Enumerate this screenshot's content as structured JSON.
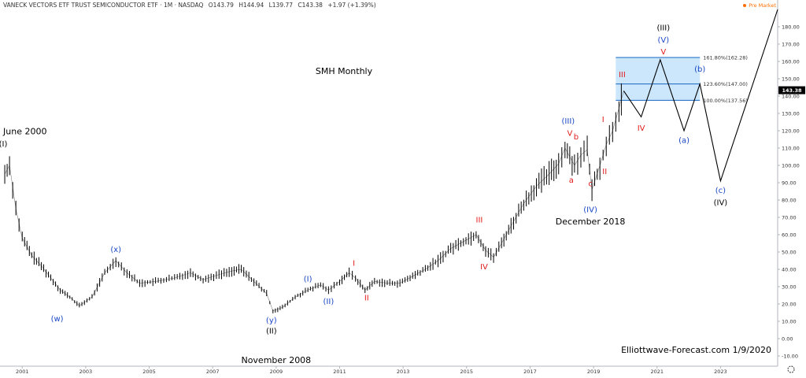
{
  "header": {
    "symbol": "VANECK VECTORS ETF TRUST SEMICONDUCTOR ETF · 1M · NASDAQ",
    "open": "O143.79",
    "high": "H144.94",
    "low": "L139.77",
    "close": "C143.38",
    "change": "+1.97 (+1.39%)",
    "premarket_label": "Pre Market",
    "premarket_color": "#ff6d00"
  },
  "chart_data": {
    "type": "line",
    "title": "SMH Monthly",
    "xlim": [
      2000.3,
      2024.8
    ],
    "ylim": [
      -10,
      190
    ],
    "y_ticks": [
      "-10.00",
      "0.00",
      "10.00",
      "20.00",
      "30.00",
      "40.00",
      "50.00",
      "60.00",
      "70.00",
      "80.00",
      "90.00",
      "100.00",
      "110.00",
      "120.00",
      "130.00",
      "140.00",
      "150.00",
      "160.00",
      "170.00",
      "180.00"
    ],
    "x_ticks": [
      "2001",
      "2003",
      "2005",
      "2007",
      "2009",
      "2011",
      "2013",
      "2015",
      "2017",
      "2019",
      "2021",
      "2023"
    ],
    "current_price": "143.38",
    "price_series": {
      "name": "SMH",
      "x": [
        2000.45,
        2000.6,
        2000.8,
        2001.0,
        2001.3,
        2001.6,
        2001.9,
        2002.2,
        2002.5,
        2002.8,
        2003.2,
        2003.6,
        2003.95,
        2004.3,
        2004.7,
        2005.2,
        2005.8,
        2006.3,
        2006.7,
        2007.2,
        2007.6,
        2007.9,
        2008.3,
        2008.7,
        2008.9,
        2009.2,
        2009.6,
        2010.0,
        2010.4,
        2010.65,
        2011.0,
        2011.3,
        2011.5,
        2011.8,
        2012.1,
        2012.5,
        2012.9,
        2013.3,
        2013.7,
        2014.1,
        2014.5,
        2014.9,
        2015.3,
        2015.6,
        2015.85,
        2016.1,
        2016.4,
        2016.8,
        2017.2,
        2017.6,
        2017.9,
        2018.1,
        2018.4,
        2018.6,
        2018.8,
        2018.95,
        2019.2,
        2019.4,
        2019.6,
        2019.8,
        2019.95
      ],
      "y": [
        95,
        100,
        75,
        58,
        48,
        42,
        35,
        28,
        24,
        19,
        24,
        38,
        45,
        38,
        32,
        33,
        35,
        38,
        34,
        37,
        39,
        40,
        33,
        26,
        16,
        18,
        24,
        28,
        31,
        28,
        33,
        38,
        35,
        28,
        33,
        32,
        32,
        36,
        40,
        45,
        52,
        56,
        60,
        51,
        47,
        55,
        65,
        78,
        88,
        95,
        101,
        110,
        100,
        106,
        109,
        86,
        100,
        112,
        120,
        133,
        143
      ]
    },
    "projection": {
      "name": "projection",
      "x": [
        2019.95,
        2020.5,
        2021.1,
        2021.85,
        2022.35,
        2023.0,
        2024.8
      ],
      "y": [
        143,
        128,
        161,
        120,
        147,
        91,
        190
      ]
    },
    "fib_levels": [
      {
        "ratio": "161.80%(162.28)",
        "value": 162.28
      },
      {
        "ratio": "123.60%(147.00)",
        "value": 147.0
      },
      {
        "ratio": "100.00%(137.56)",
        "value": 137.56
      }
    ],
    "fib_box_x": [
      2019.7,
      2022.35
    ],
    "wave_labels": [
      {
        "text": "June 2000",
        "x": 2000.4,
        "y": 118,
        "color": "#000000"
      },
      {
        "text": "(I)",
        "x": 2000.4,
        "y": 111,
        "color": "#000000"
      },
      {
        "text": "(w)",
        "x": 2002.1,
        "y": 10,
        "color": "#1a47c5"
      },
      {
        "text": "(x)",
        "x": 2003.95,
        "y": 50,
        "color": "#1a47c5"
      },
      {
        "text": "(y)",
        "x": 2008.85,
        "y": 9,
        "color": "#1a47c5"
      },
      {
        "text": "(II)",
        "x": 2008.85,
        "y": 3,
        "color": "#000000"
      },
      {
        "text": "November 2008",
        "x": 2009.0,
        "y": -14,
        "color": "#000000"
      },
      {
        "text": "(I)",
        "x": 2010.0,
        "y": 33,
        "color": "#1a47c5"
      },
      {
        "text": "(II)",
        "x": 2010.65,
        "y": 20,
        "color": "#1a47c5"
      },
      {
        "text": "I",
        "x": 2011.45,
        "y": 42,
        "color": "#e31b1b"
      },
      {
        "text": "II",
        "x": 2011.85,
        "y": 22,
        "color": "#e31b1b"
      },
      {
        "text": "III",
        "x": 2015.4,
        "y": 67,
        "color": "#e31b1b"
      },
      {
        "text": "IV",
        "x": 2015.55,
        "y": 40,
        "color": "#e31b1b"
      },
      {
        "text": "(III)",
        "x": 2018.2,
        "y": 124,
        "color": "#1a47c5"
      },
      {
        "text": "V",
        "x": 2018.25,
        "y": 117,
        "color": "#e31b1b"
      },
      {
        "text": "b",
        "x": 2018.45,
        "y": 115,
        "color": "#e31b1b"
      },
      {
        "text": "a",
        "x": 2018.3,
        "y": 90,
        "color": "#e31b1b"
      },
      {
        "text": "c",
        "x": 2018.9,
        "y": 88,
        "color": "#e31b1b"
      },
      {
        "text": "(IV)",
        "x": 2018.9,
        "y": 73,
        "color": "#1a47c5"
      },
      {
        "text": "December 2018",
        "x": 2018.9,
        "y": 66,
        "color": "#000000"
      },
      {
        "text": "I",
        "x": 2019.3,
        "y": 125,
        "color": "#e31b1b"
      },
      {
        "text": "II",
        "x": 2019.35,
        "y": 95,
        "color": "#e31b1b"
      },
      {
        "text": "III",
        "x": 2019.9,
        "y": 151,
        "color": "#e31b1b"
      },
      {
        "text": "IV",
        "x": 2020.5,
        "y": 120,
        "color": "#e31b1b"
      },
      {
        "text": "(III)",
        "x": 2021.2,
        "y": 178,
        "color": "#000000"
      },
      {
        "text": "(V)",
        "x": 2021.2,
        "y": 171,
        "color": "#1a47c5"
      },
      {
        "text": "V",
        "x": 2021.2,
        "y": 164,
        "color": "#e31b1b"
      },
      {
        "text": "(b)",
        "x": 2022.35,
        "y": 154,
        "color": "#1a47c5"
      },
      {
        "text": "(a)",
        "x": 2021.85,
        "y": 113,
        "color": "#1a47c5"
      },
      {
        "text": "(c)",
        "x": 2023.0,
        "y": 84,
        "color": "#1a47c5"
      },
      {
        "text": "(IV)",
        "x": 2023.0,
        "y": 77,
        "color": "#000000"
      }
    ],
    "watermark": "Elliottwave-Forecast.com 1/9/2020",
    "colors": {
      "price": "#000000",
      "projection": "#000000",
      "fib_fill": "#bbdefb",
      "fib_line": "#1565c0",
      "price_tag_bg": "#000000",
      "price_tag_fg": "#ffffff"
    }
  }
}
